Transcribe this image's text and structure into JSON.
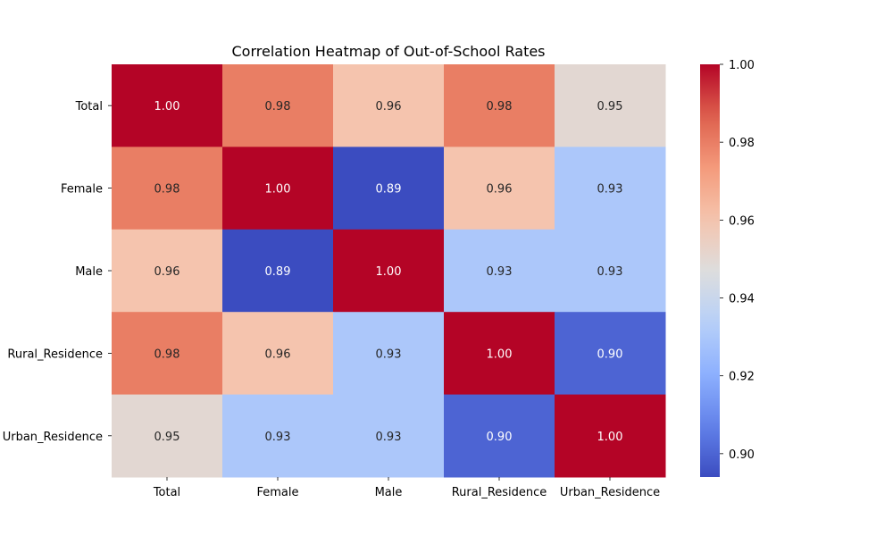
{
  "chart_data": {
    "type": "heatmap",
    "title": "Correlation Heatmap of Out-of-School Rates",
    "rows": [
      "Total",
      "Female",
      "Male",
      "Rural_Residence",
      "Urban_Residence"
    ],
    "columns": [
      "Total",
      "Female",
      "Male",
      "Rural_Residence",
      "Urban_Residence"
    ],
    "values": [
      [
        1.0,
        0.98,
        0.96,
        0.98,
        0.95
      ],
      [
        0.98,
        1.0,
        0.89,
        0.96,
        0.93
      ],
      [
        0.96,
        0.89,
        1.0,
        0.93,
        0.93
      ],
      [
        0.98,
        0.96,
        0.93,
        1.0,
        0.9
      ],
      [
        0.95,
        0.93,
        0.93,
        0.9,
        1.0
      ]
    ],
    "value_labels": [
      [
        "1.00",
        "0.98",
        "0.96",
        "0.98",
        "0.95"
      ],
      [
        "0.98",
        "1.00",
        "0.89",
        "0.96",
        "0.93"
      ],
      [
        "0.96",
        "0.89",
        "1.00",
        "0.93",
        "0.93"
      ],
      [
        "0.98",
        "0.96",
        "0.93",
        "1.00",
        "0.90"
      ],
      [
        "0.95",
        "0.93",
        "0.93",
        "0.90",
        "1.00"
      ]
    ],
    "colorbar": {
      "colormap": "coolwarm",
      "range": [
        0.894,
        1.0
      ],
      "ticks": [
        0.9,
        0.92,
        0.94,
        0.96,
        0.98,
        1.0
      ],
      "tick_labels": [
        "0.90",
        "0.92",
        "0.94",
        "0.96",
        "0.98",
        "1.00"
      ],
      "placement": "right"
    },
    "grid": false
  }
}
